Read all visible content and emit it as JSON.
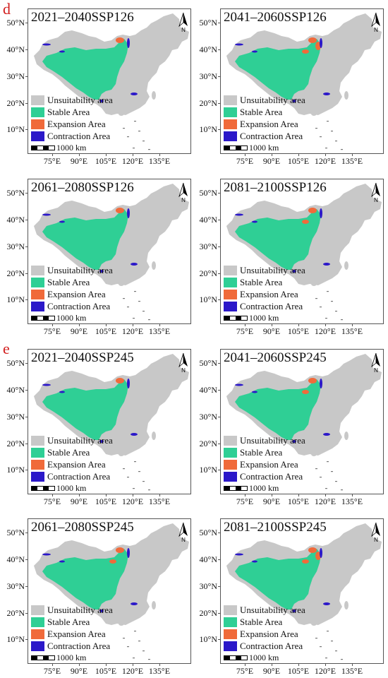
{
  "section_labels": [
    "d",
    "e"
  ],
  "legend": [
    {
      "label": "Unsuitability area",
      "color": "#c8c8c8"
    },
    {
      "label": "Stable Area",
      "color": "#2fcf95"
    },
    {
      "label": "Expansion Area",
      "color": "#f06a3a"
    },
    {
      "label": "Contraction Area",
      "color": "#2b18c9"
    }
  ],
  "scale_label": "1000 km",
  "north_label": "N",
  "y_ticks": [
    "50°N",
    "40°N",
    "30°N",
    "20°N",
    "10°N"
  ],
  "x_ticks": [
    "75°E",
    "90°E",
    "105°E",
    "120°E",
    "135°E"
  ],
  "panels": [
    {
      "title": "2021–2040SSP126",
      "expansion": 1
    },
    {
      "title": "2041–2060SSP126",
      "expansion": 3
    },
    {
      "title": "2061–2080SSP126",
      "expansion": 1
    },
    {
      "title": "2081–2100SSP126",
      "expansion": 2
    },
    {
      "title": "2021–2040SSP245",
      "expansion": 1
    },
    {
      "title": "2041–2060SSP245",
      "expansion": 2
    },
    {
      "title": "2061–2080SSP245",
      "expansion": 2
    },
    {
      "title": "2081–2100SSP245",
      "expansion": 3
    }
  ]
}
